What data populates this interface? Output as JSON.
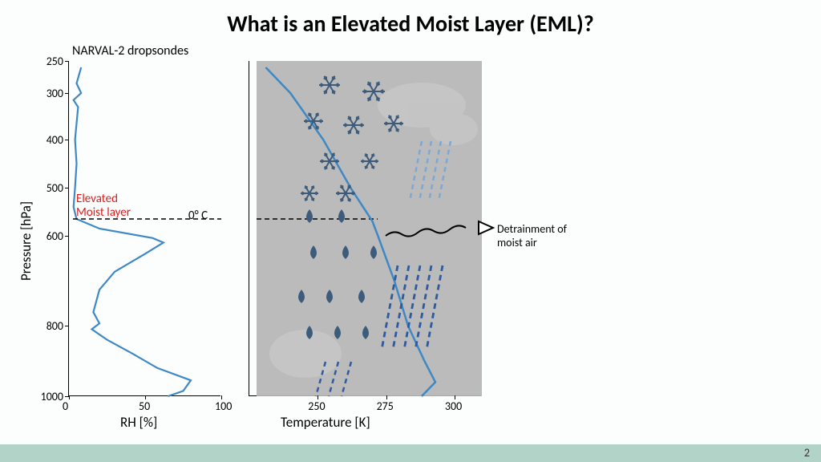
{
  "slide": {
    "title": "What is an Elevated Moist Layer (EML)?",
    "title_fontsize": 28,
    "page_number": "2",
    "footer_color": "#b2d4c8",
    "background_color": "#fcfefd"
  },
  "left_chart": {
    "type": "line",
    "subtitle": "NARVAL-2 dropsondes",
    "subtitle_fontsize": 16,
    "ylabel": "Pressure [hPa]",
    "xlabel": "RH [%]",
    "label_fontsize": 16,
    "ylim": [
      250,
      1000
    ],
    "xlim": [
      0,
      100
    ],
    "yticks": [
      250,
      300,
      400,
      500,
      600,
      800,
      1000
    ],
    "xticks": [
      0,
      50,
      100
    ],
    "line_color": "#3e88c4",
    "line_width": 2.2,
    "data_points": [
      {
        "rh": 8,
        "p": 260
      },
      {
        "rh": 5,
        "p": 285
      },
      {
        "rh": 8,
        "p": 300
      },
      {
        "rh": 3,
        "p": 315
      },
      {
        "rh": 6,
        "p": 330
      },
      {
        "rh": 4,
        "p": 400
      },
      {
        "rh": 5,
        "p": 450
      },
      {
        "rh": 4,
        "p": 500
      },
      {
        "rh": 3,
        "p": 540
      },
      {
        "rh": 5,
        "p": 565
      },
      {
        "rh": 20,
        "p": 585
      },
      {
        "rh": 55,
        "p": 605
      },
      {
        "rh": 62,
        "p": 615
      },
      {
        "rh": 50,
        "p": 640
      },
      {
        "rh": 30,
        "p": 680
      },
      {
        "rh": 20,
        "p": 720
      },
      {
        "rh": 16,
        "p": 770
      },
      {
        "rh": 20,
        "p": 795
      },
      {
        "rh": 15,
        "p": 810
      },
      {
        "rh": 25,
        "p": 840
      },
      {
        "rh": 42,
        "p": 880
      },
      {
        "rh": 58,
        "p": 920
      },
      {
        "rh": 80,
        "p": 955
      },
      {
        "rh": 75,
        "p": 985
      },
      {
        "rh": 65,
        "p": 1010
      }
    ],
    "annotations": {
      "eml_label": "Elevated\nMoist layer",
      "eml_color": "#d91e1e",
      "eml_fontsize": 15,
      "zero_c_label": "0° C",
      "zero_c_pressure": 565,
      "dashline_color": "#000000"
    }
  },
  "right_chart": {
    "type": "diagram",
    "xlabel": "Temperature [K]",
    "label_fontsize": 16,
    "xlim": [
      225,
      310
    ],
    "xticks": [
      250,
      275,
      300
    ],
    "background_color": "#b5b5b5",
    "line_color": "#3e88c4",
    "line_width": 2.5,
    "temp_profile": [
      {
        "t": 231,
        "p": 260
      },
      {
        "t": 240,
        "p": 300
      },
      {
        "t": 252,
        "p": 400
      },
      {
        "t": 262,
        "p": 500
      },
      {
        "t": 270,
        "p": 570
      },
      {
        "t": 272,
        "p": 600
      },
      {
        "t": 278,
        "p": 700
      },
      {
        "t": 283,
        "p": 800
      },
      {
        "t": 289,
        "p": 900
      },
      {
        "t": 293,
        "p": 960
      },
      {
        "t": 288,
        "p": 1010
      }
    ],
    "snowflake_color": "#3d5b7a",
    "raindrop_color": "#3d5b7a",
    "rain_streak_colors": [
      "#2e5b9e",
      "#7aa8d8"
    ],
    "annotations": {
      "detrainment_label": "Detrainment of\nmoist air",
      "detrainment_fontsize": 14,
      "arrow_color": "#000000"
    }
  }
}
